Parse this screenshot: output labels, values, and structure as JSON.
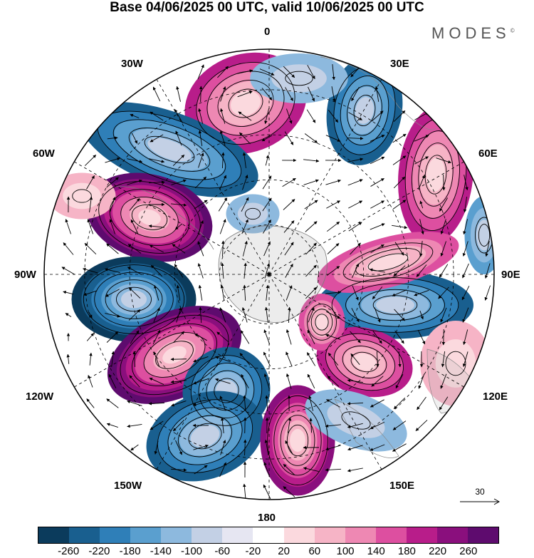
{
  "title": "Base 04/06/2025 00 UTC, valid 10/06/2025 00 UTC",
  "brand": "MODES",
  "brand_mark": "©",
  "longitude_labels": {
    "top": "0",
    "bottom": "180",
    "left": "90W",
    "right": "90E",
    "upper_left_1": "30W",
    "upper_left_2": "60W",
    "upper_right_1": "30E",
    "upper_right_2": "60E",
    "lower_left_1": "120W",
    "lower_left_2": "150W",
    "lower_right_1": "120E",
    "lower_right_2": "150E"
  },
  "reference_vector": "30",
  "colorbar": {
    "colors": [
      "#0b3b5c",
      "#195f8f",
      "#2f7fb8",
      "#5a9fcf",
      "#8db9de",
      "#c3d0e5",
      "#e6e6f2",
      "#ffffff",
      "#fbd9de",
      "#f6b4c6",
      "#ee88b3",
      "#dd4fa0",
      "#b81d8a",
      "#8a0f7d",
      "#5e0b6e"
    ],
    "ticks": [
      "-260",
      "-220",
      "-180",
      "-140",
      "-100",
      "-60",
      "-20",
      "20",
      "60",
      "100",
      "140",
      "180",
      "220",
      "260"
    ]
  }
}
